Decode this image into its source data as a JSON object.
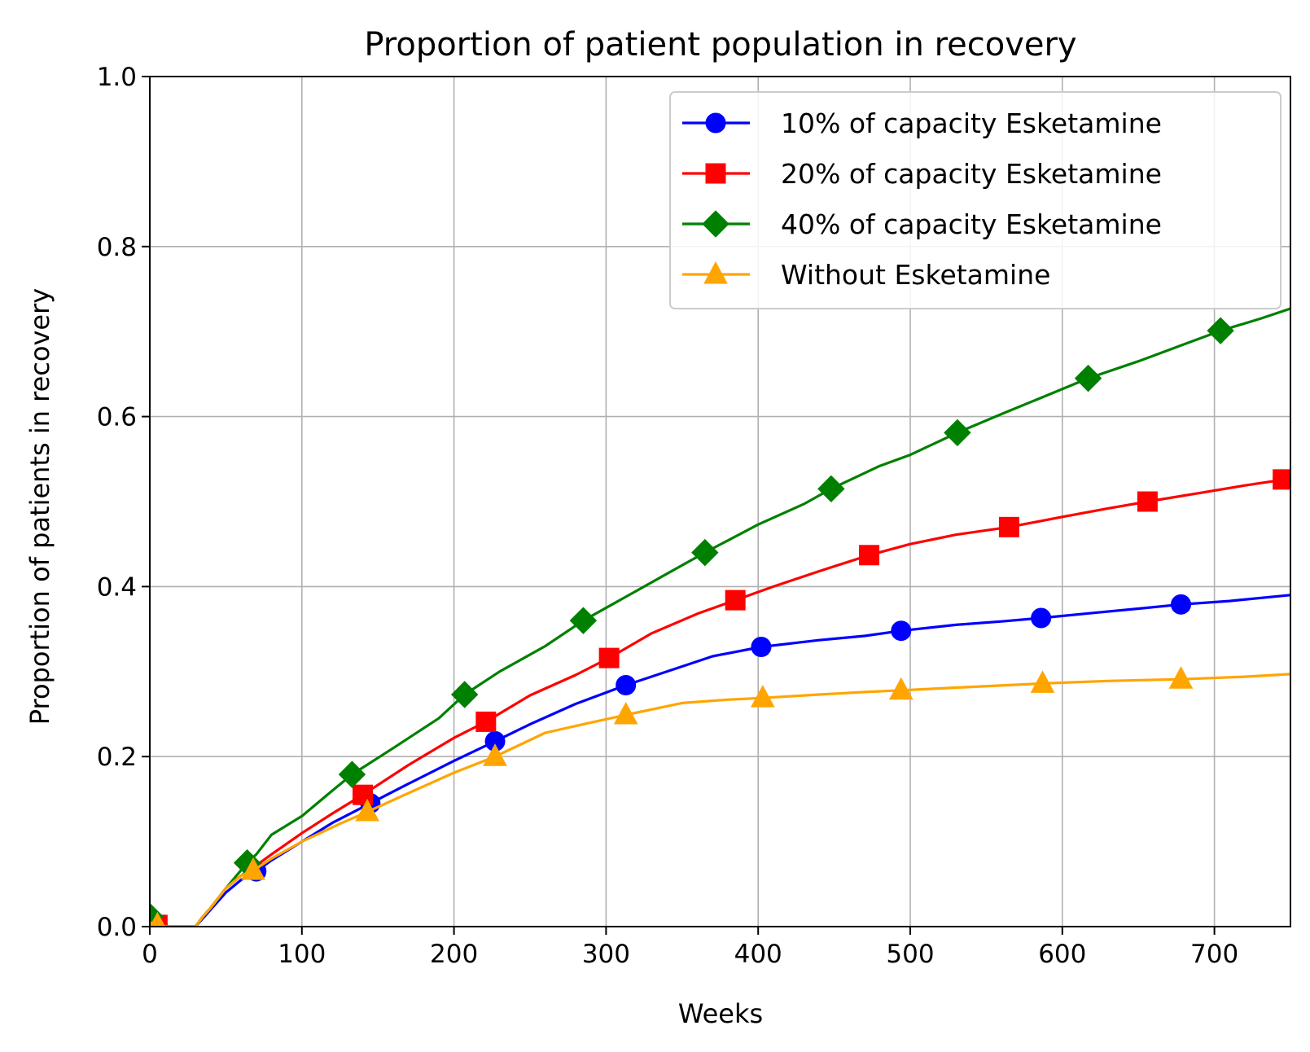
{
  "chart_data": {
    "type": "line",
    "title": "Proportion of patient population in recovery",
    "xlabel": "Weeks",
    "ylabel": "Proportion of patients in recovery",
    "xlim": [
      0,
      750
    ],
    "ylim": [
      0,
      1.0
    ],
    "x_ticks": [
      0,
      100,
      200,
      300,
      400,
      500,
      600,
      700
    ],
    "y_ticks": [
      0.0,
      0.2,
      0.4,
      0.6,
      0.8,
      1.0
    ],
    "x_tick_labels": [
      "0",
      "100",
      "200",
      "300",
      "400",
      "500",
      "600",
      "700"
    ],
    "y_tick_labels": [
      "0.0",
      "0.2",
      "0.4",
      "0.6",
      "0.8",
      "1.0"
    ],
    "grid": true,
    "legend_position": "top-right",
    "series": [
      {
        "name": "10% of capacity Esketamine",
        "color": "#0000ff",
        "marker": "circle",
        "points": [
          [
            0,
            0.005
          ],
          [
            5,
            0.002
          ],
          [
            10,
            0.0
          ],
          [
            20,
            0.0
          ],
          [
            30,
            0.0
          ],
          [
            35,
            0.01
          ],
          [
            40,
            0.02
          ],
          [
            50,
            0.04
          ],
          [
            60,
            0.055
          ],
          [
            70,
            0.065
          ],
          [
            80,
            0.078
          ],
          [
            100,
            0.1
          ],
          [
            120,
            0.122
          ],
          [
            145,
            0.145
          ],
          [
            170,
            0.168
          ],
          [
            200,
            0.195
          ],
          [
            227,
            0.218
          ],
          [
            250,
            0.238
          ],
          [
            280,
            0.262
          ],
          [
            313,
            0.284
          ],
          [
            350,
            0.306
          ],
          [
            370,
            0.318
          ],
          [
            402,
            0.329
          ],
          [
            440,
            0.337
          ],
          [
            470,
            0.342
          ],
          [
            494,
            0.348
          ],
          [
            530,
            0.355
          ],
          [
            560,
            0.359
          ],
          [
            586,
            0.363
          ],
          [
            620,
            0.369
          ],
          [
            650,
            0.374
          ],
          [
            678,
            0.379
          ],
          [
            710,
            0.383
          ],
          [
            750,
            0.39
          ]
        ],
        "marker_points": [
          [
            5,
            0.002
          ],
          [
            70,
            0.065
          ],
          [
            145,
            0.145
          ],
          [
            227,
            0.218
          ],
          [
            313,
            0.284
          ],
          [
            402,
            0.329
          ],
          [
            494,
            0.348
          ],
          [
            586,
            0.363
          ],
          [
            678,
            0.379
          ]
        ]
      },
      {
        "name": "20% of capacity Esketamine",
        "color": "#ff0000",
        "marker": "square",
        "points": [
          [
            0,
            0.005
          ],
          [
            5,
            0.002
          ],
          [
            10,
            0.0
          ],
          [
            20,
            0.0
          ],
          [
            30,
            0.0
          ],
          [
            35,
            0.012
          ],
          [
            40,
            0.022
          ],
          [
            50,
            0.045
          ],
          [
            60,
            0.06
          ],
          [
            70,
            0.072
          ],
          [
            80,
            0.085
          ],
          [
            100,
            0.11
          ],
          [
            120,
            0.133
          ],
          [
            140,
            0.155
          ],
          [
            170,
            0.19
          ],
          [
            200,
            0.222
          ],
          [
            221,
            0.241
          ],
          [
            250,
            0.272
          ],
          [
            280,
            0.296
          ],
          [
            302,
            0.316
          ],
          [
            330,
            0.345
          ],
          [
            360,
            0.368
          ],
          [
            385,
            0.384
          ],
          [
            410,
            0.4
          ],
          [
            440,
            0.418
          ],
          [
            473,
            0.437
          ],
          [
            500,
            0.45
          ],
          [
            530,
            0.461
          ],
          [
            565,
            0.47
          ],
          [
            600,
            0.482
          ],
          [
            630,
            0.492
          ],
          [
            656,
            0.5
          ],
          [
            690,
            0.51
          ],
          [
            720,
            0.519
          ],
          [
            750,
            0.527
          ]
        ],
        "marker_points": [
          [
            5,
            0.002
          ],
          [
            140,
            0.155
          ],
          [
            221,
            0.241
          ],
          [
            302,
            0.316
          ],
          [
            385,
            0.384
          ],
          [
            473,
            0.437
          ],
          [
            565,
            0.47
          ],
          [
            656,
            0.5
          ],
          [
            745,
            0.526
          ]
        ]
      },
      {
        "name": "40% of capacity Esketamine",
        "color": "#008000",
        "marker": "diamond",
        "points": [
          [
            0,
            0.012
          ],
          [
            5,
            0.005
          ],
          [
            10,
            0.0
          ],
          [
            20,
            0.0
          ],
          [
            30,
            0.0
          ],
          [
            35,
            0.012
          ],
          [
            40,
            0.022
          ],
          [
            50,
            0.045
          ],
          [
            64,
            0.075
          ],
          [
            70,
            0.085
          ],
          [
            80,
            0.108
          ],
          [
            100,
            0.13
          ],
          [
            120,
            0.16
          ],
          [
            133,
            0.179
          ],
          [
            160,
            0.21
          ],
          [
            190,
            0.245
          ],
          [
            207,
            0.273
          ],
          [
            230,
            0.3
          ],
          [
            260,
            0.33
          ],
          [
            285,
            0.36
          ],
          [
            320,
            0.395
          ],
          [
            340,
            0.415
          ],
          [
            365,
            0.44
          ],
          [
            400,
            0.473
          ],
          [
            430,
            0.497
          ],
          [
            448,
            0.515
          ],
          [
            480,
            0.542
          ],
          [
            500,
            0.555
          ],
          [
            531,
            0.581
          ],
          [
            560,
            0.603
          ],
          [
            590,
            0.625
          ],
          [
            617,
            0.645
          ],
          [
            650,
            0.665
          ],
          [
            680,
            0.685
          ],
          [
            704,
            0.701
          ],
          [
            730,
            0.715
          ],
          [
            750,
            0.727
          ]
        ],
        "marker_points": [
          [
            0,
            0.012
          ],
          [
            64,
            0.075
          ],
          [
            133,
            0.179
          ],
          [
            207,
            0.273
          ],
          [
            285,
            0.36
          ],
          [
            365,
            0.44
          ],
          [
            448,
            0.515
          ],
          [
            531,
            0.581
          ],
          [
            617,
            0.645
          ],
          [
            704,
            0.701
          ]
        ]
      },
      {
        "name": "Without Esketamine",
        "color": "#ffa500",
        "marker": "triangle",
        "points": [
          [
            0,
            0.005
          ],
          [
            5,
            0.002
          ],
          [
            10,
            0.0
          ],
          [
            20,
            0.0
          ],
          [
            30,
            0.0
          ],
          [
            35,
            0.012
          ],
          [
            40,
            0.022
          ],
          [
            50,
            0.045
          ],
          [
            60,
            0.06
          ],
          [
            68,
            0.066
          ],
          [
            80,
            0.08
          ],
          [
            100,
            0.1
          ],
          [
            125,
            0.121
          ],
          [
            143,
            0.135
          ],
          [
            170,
            0.157
          ],
          [
            200,
            0.181
          ],
          [
            227,
            0.2
          ],
          [
            260,
            0.228
          ],
          [
            290,
            0.24
          ],
          [
            313,
            0.249
          ],
          [
            350,
            0.263
          ],
          [
            380,
            0.267
          ],
          [
            403,
            0.269
          ],
          [
            440,
            0.273
          ],
          [
            470,
            0.276
          ],
          [
            494,
            0.278
          ],
          [
            540,
            0.282
          ],
          [
            587,
            0.286
          ],
          [
            630,
            0.289
          ],
          [
            678,
            0.291
          ],
          [
            720,
            0.294
          ],
          [
            750,
            0.297
          ]
        ],
        "marker_points": [
          [
            5,
            0.002
          ],
          [
            68,
            0.066
          ],
          [
            143,
            0.135
          ],
          [
            227,
            0.2
          ],
          [
            313,
            0.249
          ],
          [
            403,
            0.269
          ],
          [
            494,
            0.278
          ],
          [
            587,
            0.286
          ],
          [
            678,
            0.291
          ]
        ]
      }
    ]
  }
}
